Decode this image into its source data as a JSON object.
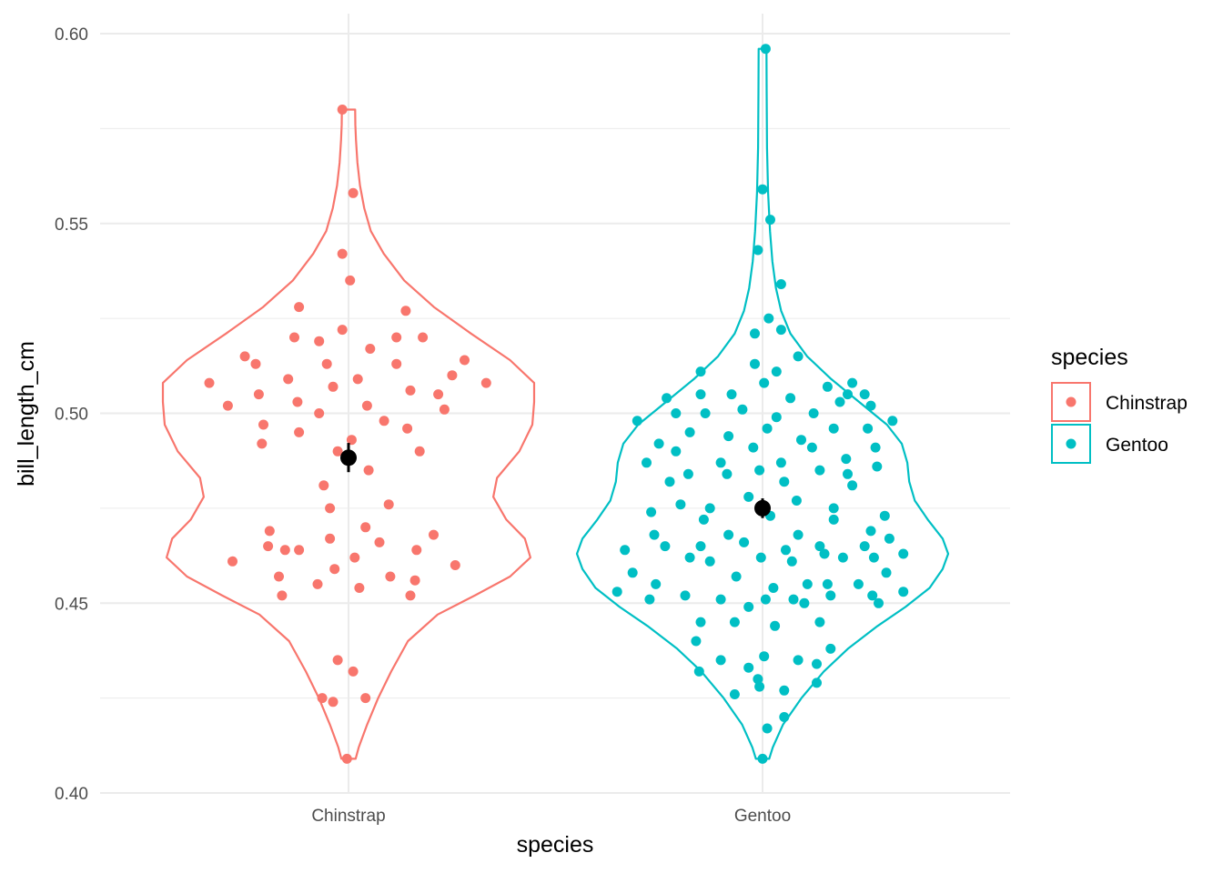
{
  "chart_data": {
    "type": "violin",
    "xlabel": "species",
    "ylabel": "bill_length_cm",
    "ylim": [
      0.4,
      0.6
    ],
    "y_ticks": [
      "0.40",
      "0.45",
      "0.50",
      "0.55",
      "0.60"
    ],
    "y_minor_ticks": [
      0.425,
      0.475,
      0.525,
      0.575
    ],
    "categories": [
      "Chinstrap",
      "Gentoo"
    ],
    "grid": true,
    "legend": {
      "title": "species",
      "position": "right",
      "entries": [
        {
          "label": "Chinstrap",
          "color": "#F8766D"
        },
        {
          "label": "Gentoo",
          "color": "#00BFC4"
        }
      ]
    },
    "series": [
      {
        "name": "Chinstrap",
        "color": "#F8766D",
        "summary": {
          "mean": 0.4883,
          "ci": [
            0.4845,
            0.4922
          ]
        },
        "violin": {
          "ymin": 0.409,
          "ymax": 0.58,
          "profile": [
            [
              0.409,
              0.038
            ],
            [
              0.412,
              0.055
            ],
            [
              0.418,
              0.1
            ],
            [
              0.425,
              0.16
            ],
            [
              0.432,
              0.23
            ],
            [
              0.44,
              0.32
            ],
            [
              0.447,
              0.48
            ],
            [
              0.452,
              0.68
            ],
            [
              0.457,
              0.87
            ],
            [
              0.462,
              0.98
            ],
            [
              0.467,
              0.95
            ],
            [
              0.472,
              0.85
            ],
            [
              0.478,
              0.78
            ],
            [
              0.483,
              0.8
            ],
            [
              0.49,
              0.92
            ],
            [
              0.497,
              0.99
            ],
            [
              0.503,
              1.0
            ],
            [
              0.508,
              1.0
            ],
            [
              0.514,
              0.87
            ],
            [
              0.521,
              0.66
            ],
            [
              0.528,
              0.46
            ],
            [
              0.535,
              0.3
            ],
            [
              0.542,
              0.19
            ],
            [
              0.548,
              0.12
            ],
            [
              0.554,
              0.085
            ],
            [
              0.56,
              0.062
            ],
            [
              0.566,
              0.048
            ],
            [
              0.572,
              0.04
            ],
            [
              0.576,
              0.037
            ],
            [
              0.58,
              0.036
            ]
          ]
        },
        "points": [
          [
            -0.9,
            0.508
          ],
          [
            -0.78,
            0.502
          ],
          [
            -0.67,
            0.515
          ],
          [
            -0.6,
            0.513
          ],
          [
            -0.58,
            0.505
          ],
          [
            -0.55,
            0.497
          ],
          [
            -0.56,
            0.492
          ],
          [
            -0.51,
            0.469
          ],
          [
            -0.52,
            0.465
          ],
          [
            -0.75,
            0.461
          ],
          [
            -0.45,
            0.457
          ],
          [
            -0.43,
            0.452
          ],
          [
            -0.41,
            0.464
          ],
          [
            -0.32,
            0.464
          ],
          [
            -0.39,
            0.509
          ],
          [
            -0.35,
            0.52
          ],
          [
            -0.32,
            0.528
          ],
          [
            -0.33,
            0.503
          ],
          [
            -0.32,
            0.495
          ],
          [
            -0.19,
            0.519
          ],
          [
            -0.19,
            0.5
          ],
          [
            -0.14,
            0.513
          ],
          [
            -0.1,
            0.507
          ],
          [
            -0.07,
            0.49
          ],
          [
            -0.16,
            0.481
          ],
          [
            -0.12,
            0.475
          ],
          [
            -0.12,
            0.467
          ],
          [
            -0.09,
            0.459
          ],
          [
            -0.2,
            0.455
          ],
          [
            -0.04,
            0.522
          ],
          [
            0.01,
            0.535
          ],
          [
            -0.04,
            0.542
          ],
          [
            0.03,
            0.558
          ],
          [
            -0.04,
            0.58
          ],
          [
            0.02,
            0.493
          ],
          [
            0.06,
            0.509
          ],
          [
            0.12,
            0.502
          ],
          [
            0.14,
            0.517
          ],
          [
            0.11,
            0.47
          ],
          [
            0.04,
            0.462
          ],
          [
            0.07,
            0.454
          ],
          [
            0.13,
            0.485
          ],
          [
            0.23,
            0.498
          ],
          [
            0.2,
            0.466
          ],
          [
            0.26,
            0.476
          ],
          [
            0.27,
            0.457
          ],
          [
            0.31,
            0.513
          ],
          [
            0.31,
            0.52
          ],
          [
            0.38,
            0.496
          ],
          [
            0.4,
            0.506
          ],
          [
            0.37,
            0.527
          ],
          [
            0.46,
            0.49
          ],
          [
            0.4,
            0.452
          ],
          [
            0.43,
            0.456
          ],
          [
            0.44,
            0.464
          ],
          [
            0.55,
            0.468
          ],
          [
            0.48,
            0.52
          ],
          [
            0.58,
            0.505
          ],
          [
            0.67,
            0.51
          ],
          [
            0.62,
            0.501
          ],
          [
            0.75,
            0.514
          ],
          [
            0.89,
            0.508
          ],
          [
            0.69,
            0.46
          ],
          [
            -0.07,
            0.435
          ],
          [
            0.03,
            0.432
          ],
          [
            -0.1,
            0.424
          ],
          [
            -0.17,
            0.425
          ],
          [
            0.11,
            0.425
          ],
          [
            -0.01,
            0.409
          ]
        ]
      },
      {
        "name": "Gentoo",
        "color": "#00BFC4",
        "summary": {
          "mean": 0.475,
          "ci": [
            0.4724,
            0.4776
          ]
        },
        "violin": {
          "ymin": 0.409,
          "ymax": 0.596,
          "profile": [
            [
              0.409,
              0.036
            ],
            [
              0.412,
              0.055
            ],
            [
              0.418,
              0.11
            ],
            [
              0.425,
              0.21
            ],
            [
              0.432,
              0.33
            ],
            [
              0.438,
              0.46
            ],
            [
              0.444,
              0.62
            ],
            [
              0.449,
              0.77
            ],
            [
              0.454,
              0.9
            ],
            [
              0.459,
              0.97
            ],
            [
              0.463,
              1.0
            ],
            [
              0.467,
              0.97
            ],
            [
              0.472,
              0.89
            ],
            [
              0.477,
              0.82
            ],
            [
              0.482,
              0.79
            ],
            [
              0.487,
              0.78
            ],
            [
              0.492,
              0.75
            ],
            [
              0.497,
              0.67
            ],
            [
              0.503,
              0.52
            ],
            [
              0.509,
              0.37
            ],
            [
              0.515,
              0.24
            ],
            [
              0.521,
              0.15
            ],
            [
              0.527,
              0.1
            ],
            [
              0.533,
              0.072
            ],
            [
              0.54,
              0.053
            ],
            [
              0.548,
              0.04
            ],
            [
              0.558,
              0.03
            ],
            [
              0.57,
              0.024
            ],
            [
              0.585,
              0.022
            ],
            [
              0.596,
              0.021
            ]
          ]
        },
        "points": [
          [
            -0.94,
            0.453
          ],
          [
            -0.89,
            0.464
          ],
          [
            -0.84,
            0.458
          ],
          [
            -0.81,
            0.498
          ],
          [
            -0.75,
            0.487
          ],
          [
            -0.73,
            0.451
          ],
          [
            -0.72,
            0.474
          ],
          [
            -0.69,
            0.455
          ],
          [
            -0.67,
            0.492
          ],
          [
            -0.7,
            0.468
          ],
          [
            -0.62,
            0.504
          ],
          [
            -0.63,
            0.465
          ],
          [
            -0.56,
            0.5
          ],
          [
            -0.56,
            0.49
          ],
          [
            -0.6,
            0.482
          ],
          [
            -0.53,
            0.476
          ],
          [
            -0.5,
            0.452
          ],
          [
            -0.47,
            0.495
          ],
          [
            -0.48,
            0.484
          ],
          [
            -0.47,
            0.462
          ],
          [
            -0.4,
            0.505
          ],
          [
            -0.4,
            0.511
          ],
          [
            -0.37,
            0.5
          ],
          [
            -0.4,
            0.465
          ],
          [
            -0.4,
            0.445
          ],
          [
            -0.43,
            0.44
          ],
          [
            -0.41,
            0.432
          ],
          [
            -0.38,
            0.472
          ],
          [
            -0.34,
            0.475
          ],
          [
            -0.34,
            0.461
          ],
          [
            -0.27,
            0.487
          ],
          [
            -0.27,
            0.451
          ],
          [
            -0.27,
            0.435
          ],
          [
            -0.23,
            0.484
          ],
          [
            -0.22,
            0.468
          ],
          [
            -0.22,
            0.494
          ],
          [
            -0.2,
            0.505
          ],
          [
            -0.17,
            0.457
          ],
          [
            -0.18,
            0.445
          ],
          [
            -0.18,
            0.426
          ],
          [
            -0.13,
            0.501
          ],
          [
            -0.12,
            0.466
          ],
          [
            -0.09,
            0.478
          ],
          [
            -0.09,
            0.449
          ],
          [
            -0.09,
            0.433
          ],
          [
            -0.05,
            0.513
          ],
          [
            -0.05,
            0.521
          ],
          [
            -0.06,
            0.491
          ],
          [
            -0.01,
            0.462
          ],
          [
            -0.03,
            0.43
          ],
          [
            -0.02,
            0.485
          ],
          [
            0.02,
            0.451
          ],
          [
            0.01,
            0.436
          ],
          [
            -0.02,
            0.428
          ],
          [
            0.03,
            0.496
          ],
          [
            0.01,
            0.508
          ],
          [
            -0.03,
            0.543
          ],
          [
            0.04,
            0.525
          ],
          [
            0.0,
            0.559
          ],
          [
            0.05,
            0.551
          ],
          [
            0.03,
            0.417
          ],
          [
            0.05,
            0.473
          ],
          [
            0.09,
            0.499
          ],
          [
            0.07,
            0.454
          ],
          [
            0.08,
            0.444
          ],
          [
            0.09,
            0.511
          ],
          [
            0.12,
            0.487
          ],
          [
            0.14,
            0.42
          ],
          [
            0.12,
            0.522
          ],
          [
            0.12,
            0.534
          ],
          [
            0.14,
            0.482
          ],
          [
            0.15,
            0.464
          ],
          [
            0.14,
            0.427
          ],
          [
            0.18,
            0.504
          ],
          [
            0.19,
            0.461
          ],
          [
            0.2,
            0.451
          ],
          [
            0.22,
            0.477
          ],
          [
            0.23,
            0.468
          ],
          [
            0.23,
            0.435
          ],
          [
            0.23,
            0.515
          ],
          [
            0.25,
            0.493
          ],
          [
            0.27,
            0.45
          ],
          [
            0.29,
            0.455
          ],
          [
            0.32,
            0.491
          ],
          [
            0.33,
            0.5
          ],
          [
            0.35,
            0.434
          ],
          [
            0.35,
            0.429
          ],
          [
            0.37,
            0.485
          ],
          [
            0.37,
            0.465
          ],
          [
            0.37,
            0.445
          ],
          [
            0.4,
            0.463
          ],
          [
            0.42,
            0.455
          ],
          [
            0.42,
            0.507
          ],
          [
            0.44,
            0.452
          ],
          [
            0.44,
            0.438
          ],
          [
            0.46,
            0.496
          ],
          [
            0.46,
            0.475
          ],
          [
            0.46,
            0.472
          ],
          [
            0.5,
            0.503
          ],
          [
            0.52,
            0.462
          ],
          [
            0.54,
            0.488
          ],
          [
            0.55,
            0.484
          ],
          [
            0.55,
            0.505
          ],
          [
            0.58,
            0.481
          ],
          [
            0.58,
            0.508
          ],
          [
            0.62,
            0.455
          ],
          [
            0.66,
            0.505
          ],
          [
            0.66,
            0.465
          ],
          [
            0.68,
            0.496
          ],
          [
            0.7,
            0.469
          ],
          [
            0.7,
            0.502
          ],
          [
            0.72,
            0.462
          ],
          [
            0.71,
            0.452
          ],
          [
            0.73,
            0.491
          ],
          [
            0.75,
            0.45
          ],
          [
            0.74,
            0.486
          ],
          [
            0.79,
            0.473
          ],
          [
            0.8,
            0.458
          ],
          [
            0.82,
            0.467
          ],
          [
            0.84,
            0.498
          ],
          [
            0.91,
            0.463
          ],
          [
            0.91,
            0.453
          ],
          [
            0.02,
            0.596
          ],
          [
            0.0,
            0.409
          ]
        ]
      }
    ]
  }
}
